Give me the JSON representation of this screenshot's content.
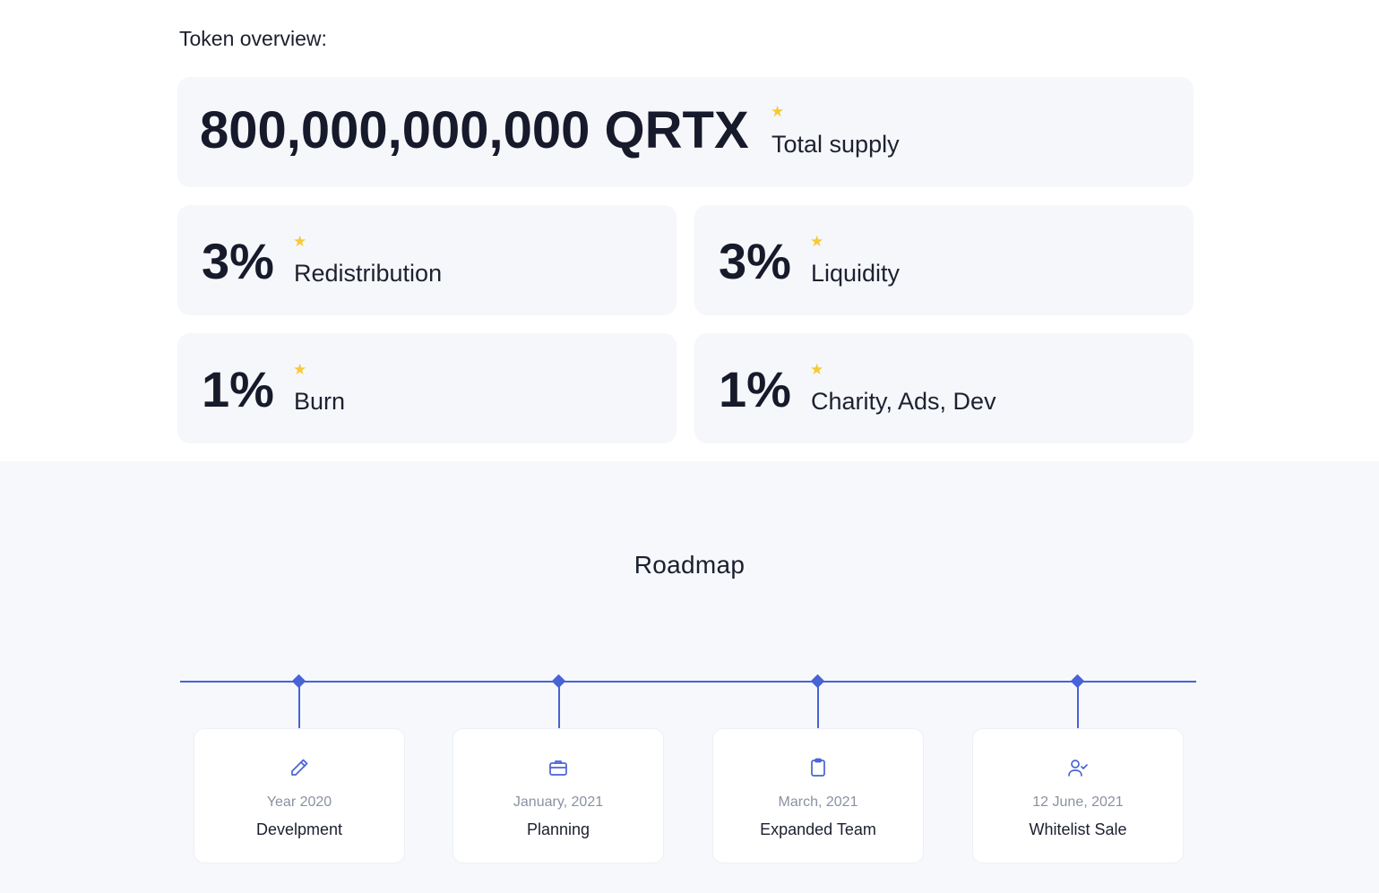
{
  "overview": {
    "title": "Token overview:",
    "total_supply": {
      "value": "800,000,000,000 QRTX",
      "label": "Total supply",
      "star": "★"
    },
    "stats": [
      {
        "value": "3%",
        "label": "Redistribution",
        "star": "★"
      },
      {
        "value": "3%",
        "label": "Liquidity",
        "star": "★"
      },
      {
        "value": "1%",
        "label": "Burn",
        "star": "★"
      },
      {
        "value": "1%",
        "label": "Charity, Ads, Dev",
        "star": "★"
      }
    ]
  },
  "roadmap": {
    "title": "Roadmap",
    "steps": [
      {
        "date": "Year 2020",
        "name": "Develpment",
        "icon": "pencil-icon"
      },
      {
        "date": "January, 2021",
        "name": "Planning",
        "icon": "briefcase-icon"
      },
      {
        "date": "March, 2021",
        "name": "Expanded Team",
        "icon": "clipboard-icon"
      },
      {
        "date": "12 June, 2021",
        "name": "Whitelist Sale",
        "icon": "user-check-icon"
      }
    ]
  },
  "colors": {
    "accent": "#4863d6",
    "star": "#f7c935",
    "card_bg": "#f5f7fa",
    "section_bg": "#f6f8fb"
  }
}
